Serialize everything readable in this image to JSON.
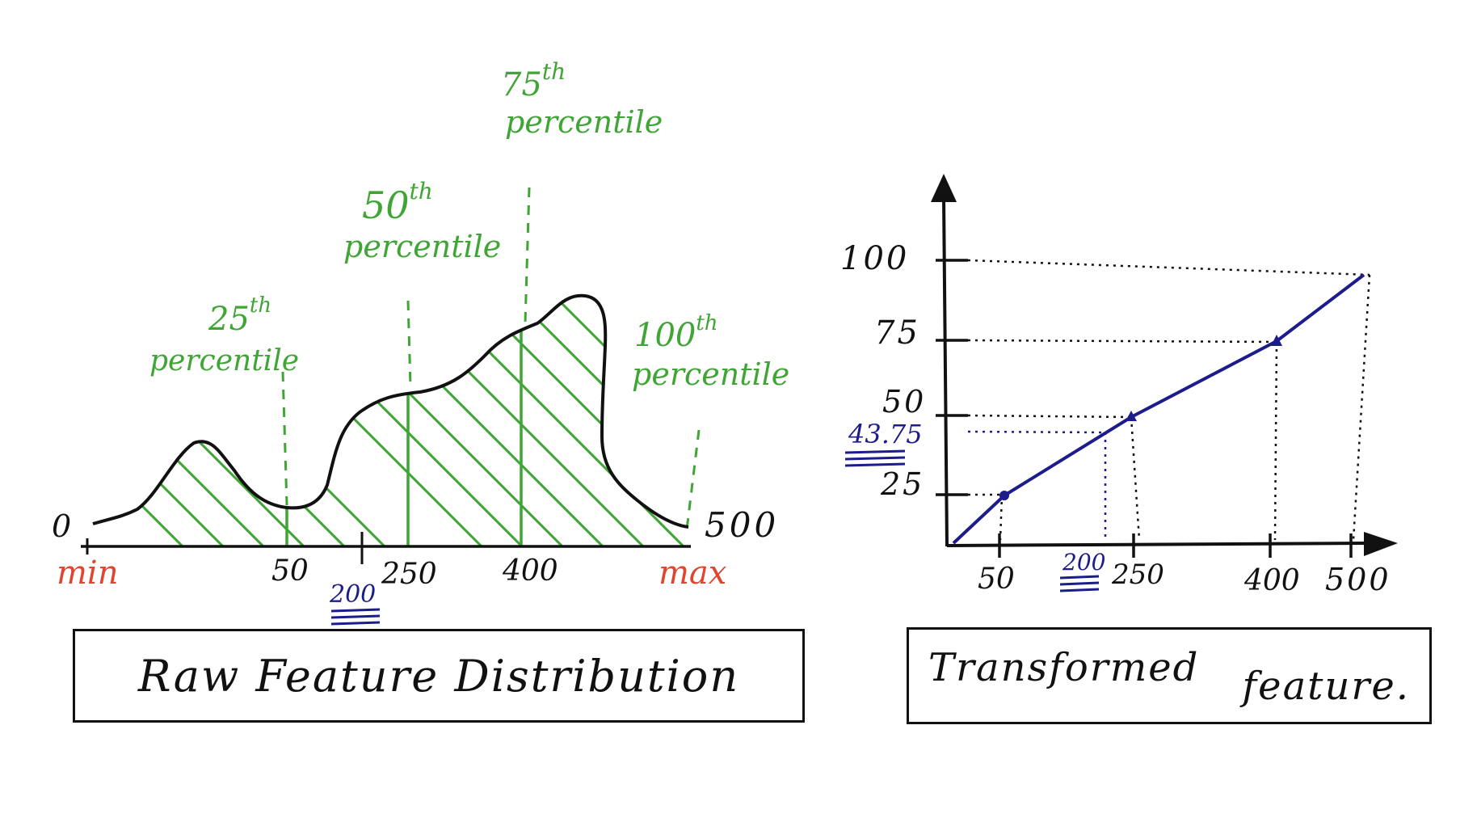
{
  "left": {
    "caption": "Raw Feature Distribution",
    "zero_label": "0",
    "max_value_label": "500",
    "min_label": "min",
    "max_label": "max",
    "x_ticks": [
      "50",
      "250",
      "400"
    ],
    "highlight_label": "200",
    "percentiles": [
      {
        "ordinal": "25",
        "suffix": "th",
        "word": "percentile"
      },
      {
        "ordinal": "50",
        "suffix": "th",
        "word": "percentile"
      },
      {
        "ordinal": "75",
        "suffix": "th",
        "word": "percentile"
      },
      {
        "ordinal": "100",
        "suffix": "th",
        "word": "percentile"
      }
    ]
  },
  "right": {
    "caption_part1": "Transformed",
    "caption_part2": "feature.",
    "y_ticks": [
      "100",
      "75",
      "50",
      "25"
    ],
    "y_highlight": "43.75",
    "x_ticks": [
      "50",
      "250",
      "400",
      "500"
    ],
    "x_highlight": "200"
  },
  "colors": {
    "percentile_lines": "#3fa535",
    "min_max_labels": "#e0452f",
    "transform_line": "#1c1c8c",
    "axes": "#111111"
  }
}
